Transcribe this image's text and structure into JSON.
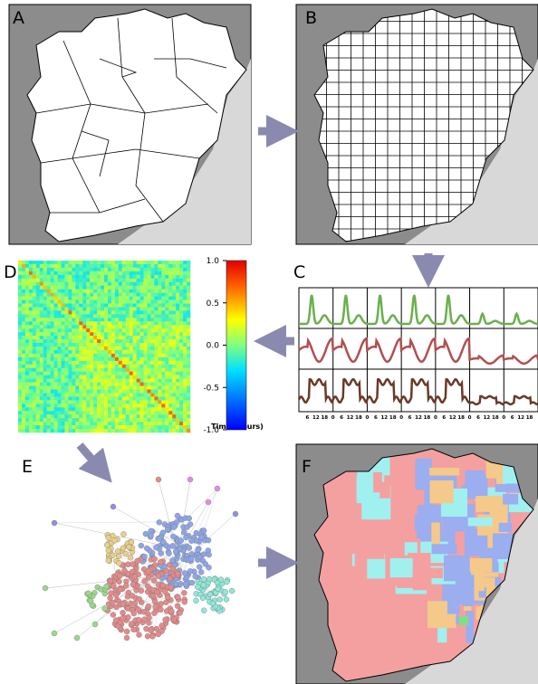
{
  "panels": {
    "A": {
      "label": "A"
    },
    "B": {
      "label": "B"
    },
    "C": {
      "label": "C",
      "time_ticks": [
        6,
        12,
        18,
        0,
        6,
        12,
        18,
        0,
        6,
        12,
        18,
        0,
        6,
        12,
        18,
        0,
        6,
        12,
        18,
        0,
        6,
        12,
        18,
        0,
        6,
        12,
        18
      ],
      "x_title": "Time (hours)"
    },
    "D": {
      "label": "D",
      "colorbar_range": [
        -1,
        1
      ],
      "colorbar_ticks": [
        {
          "value": 1,
          "label": "1.0"
        },
        {
          "value": 0.5,
          "label": "0.5"
        },
        {
          "value": 0,
          "label": "0.0"
        },
        {
          "value": -0.5,
          "label": "-0.5"
        },
        {
          "value": -1,
          "label": "-1.0"
        }
      ]
    },
    "E": {
      "label": "E"
    },
    "F": {
      "label": "F"
    }
  }
}
